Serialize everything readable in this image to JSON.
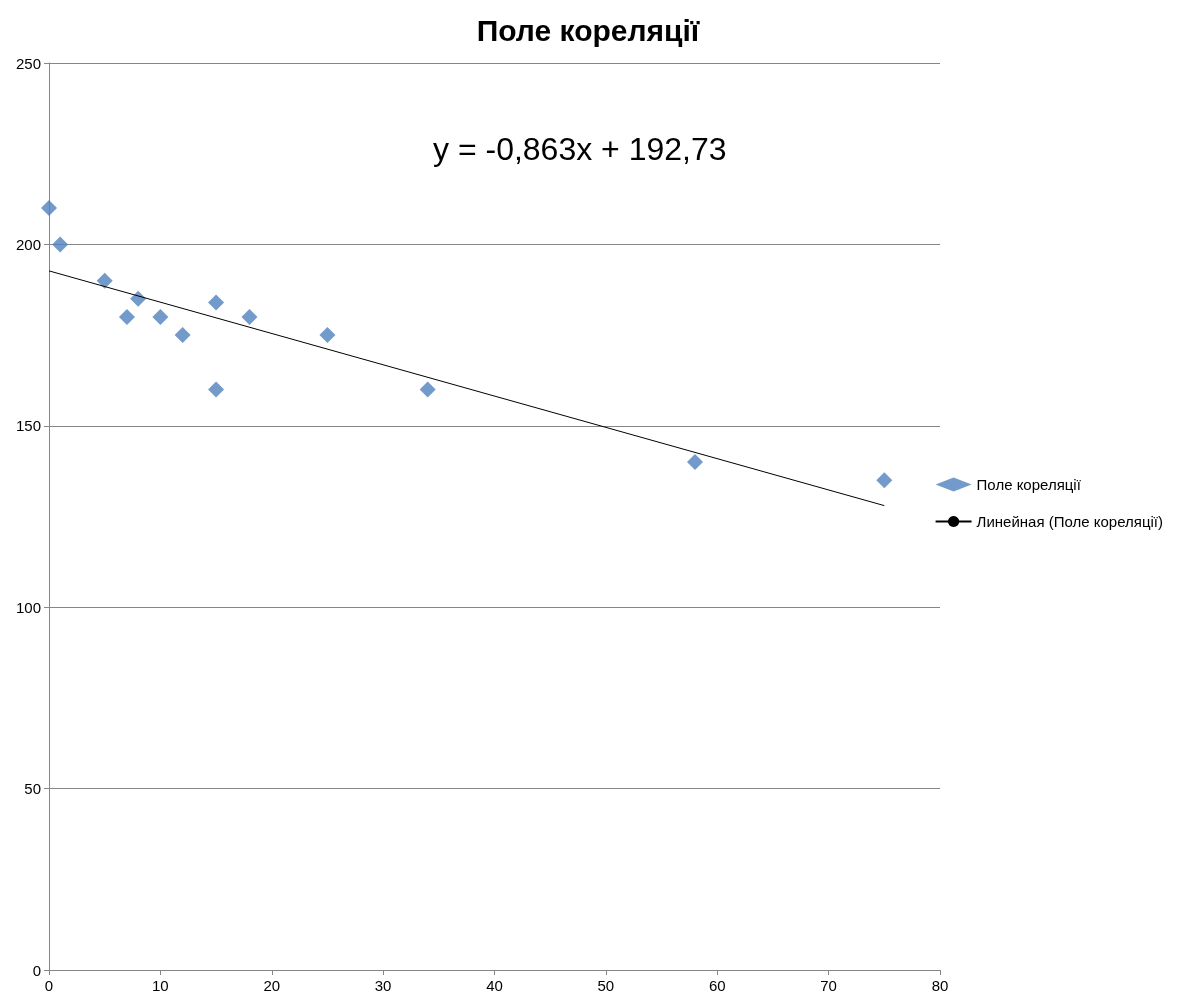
{
  "chart_data": {
    "type": "scatter",
    "title": "Поле кореляції",
    "annotations": [
      "y = -0,863x + 192,73"
    ],
    "series": [
      {
        "name": "Поле кореляції",
        "color": "#4f81bd",
        "marker": "diamond",
        "x": [
          0,
          1,
          5,
          7,
          8,
          10,
          12,
          15,
          15,
          18,
          25,
          34,
          58,
          75
        ],
        "values": [
          210,
          200,
          190,
          180,
          185,
          180,
          175,
          184,
          160,
          180,
          175,
          160,
          140,
          135
        ]
      },
      {
        "name": "Линейная (Поле кореляції)",
        "type": "line",
        "color": "#000000",
        "marker": "none",
        "line_style": "solid",
        "x": [
          0,
          75
        ],
        "values": [
          192.7,
          128.0
        ]
      }
    ],
    "xlim": [
      0,
      80
    ],
    "xticks": [
      0,
      10,
      20,
      30,
      40,
      50,
      60,
      70,
      80
    ],
    "ylim": [
      0,
      250
    ],
    "yticks": [
      0,
      50,
      100,
      150,
      200,
      250
    ],
    "grid": "y",
    "legend": "right"
  }
}
